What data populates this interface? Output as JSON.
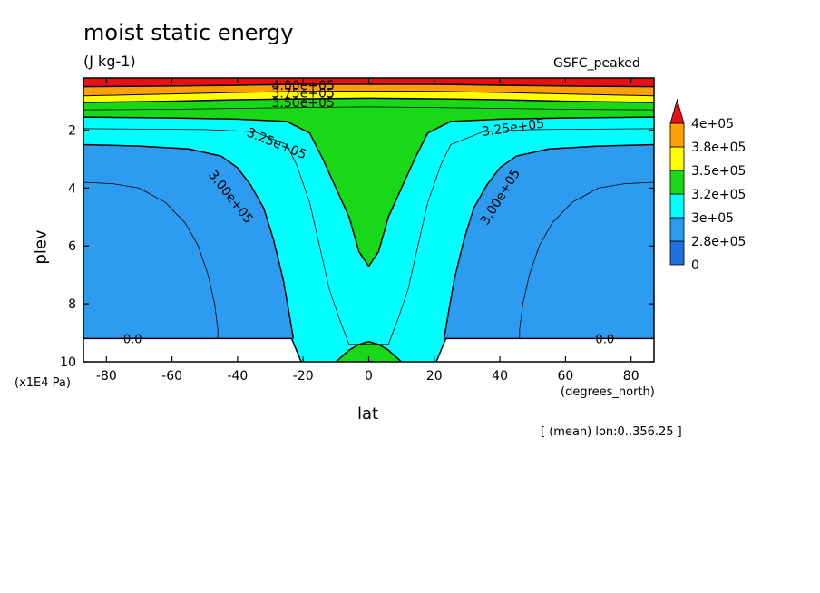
{
  "chart_data": {
    "type": "heatmap",
    "title": "moist static energy",
    "units": "(J kg-1)",
    "model_label": "GSFC_peaked",
    "xlabel": "lat",
    "ylabel": "plev",
    "x_unit_label": "(degrees_north)",
    "y_unit_label": "(x1E4 Pa)",
    "subtitle": "[ (mean) lon:0..356.25 ]",
    "xlim": [
      -87,
      87
    ],
    "ylim": [
      10,
      0.2
    ],
    "x_ticks": [
      -80,
      -60,
      -40,
      -20,
      0,
      20,
      40,
      60,
      80
    ],
    "y_ticks": [
      2,
      4,
      6,
      8,
      10
    ],
    "colorbar": {
      "levels": [
        "0",
        "2.8e+05",
        "3e+05",
        "3.2e+05",
        "3.5e+05",
        "3.8e+05",
        "4e+05"
      ],
      "colors": [
        "#1e6fe0",
        "#2d9bf0",
        "#00ffff",
        "#18d818",
        "#ffff00",
        "#ffa000",
        "#e81010"
      ],
      "extend": "max"
    },
    "contour_labels": [
      "4.00e+05",
      "3.75e+05",
      "3.50e+05",
      "3.25e+05",
      "3.25e+05",
      "3.00e+05",
      "3.00e+05"
    ],
    "missing_markers": [
      "0.0",
      "0.0"
    ],
    "bands": [
      {
        "name": ">= 4e+05",
        "color": "#e81010",
        "region": "top, plev < 0.5"
      },
      {
        "name": "3.8e+05 - 4e+05",
        "color": "#ffa000",
        "region": "plev 0.5 - 0.8"
      },
      {
        "name": "3.5e+05 - 3.8e+05",
        "color": "#ffff00",
        "region": "plev 0.8 - 1.1"
      },
      {
        "name": "3.2e+05 - 3.5e+05",
        "color": "#18d818",
        "region": "upper layer and tropical tongue to plev 6.7"
      },
      {
        "name": "3e+05 - 3.2e+05",
        "color": "#00ffff",
        "region": "subtropical and tropical column"
      },
      {
        "name": "2.8e+05 - 3e+05",
        "color": "#2d9bf0",
        "region": "mid latitudes, plev 2.5 - 9.2"
      }
    ]
  }
}
